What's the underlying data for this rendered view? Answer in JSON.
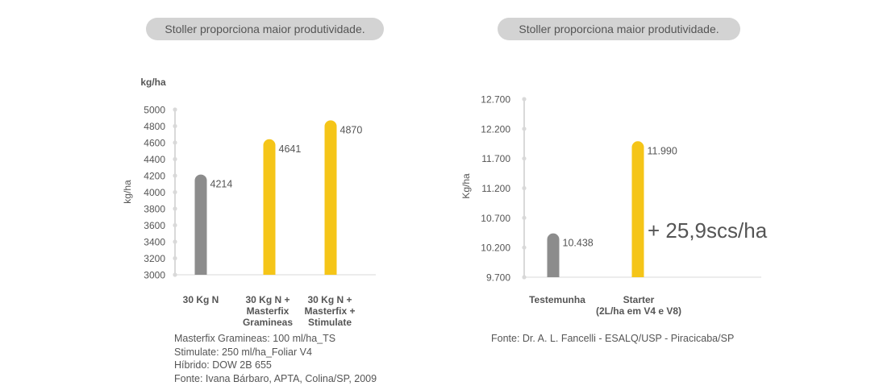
{
  "banners": {
    "left": "Stoller proporciona maior produtividade.",
    "right": "Stoller proporciona maior produtividade."
  },
  "colors": {
    "gray_bar": "#8c8c8c",
    "yellow_bar": "#f5c518",
    "axis": "#d9d9d9",
    "text": "#555555",
    "banner_bg": "#d3d3d3"
  },
  "chart_data": [
    {
      "type": "bar",
      "unit_label": "kg/ha",
      "ylabel": "kg/ha",
      "ylim": [
        3000,
        5000
      ],
      "ytick_labels": [
        "5000",
        "4800",
        "4600",
        "4400",
        "4200",
        "4000",
        "3800",
        "3600",
        "3400",
        "3200",
        "3000"
      ],
      "categories": [
        [
          "30 Kg N"
        ],
        [
          "30 Kg N +",
          "Masterfix",
          "Gramineas"
        ],
        [
          "30 Kg N +",
          "Masterfix +",
          "Stimulate"
        ]
      ],
      "values": [
        4214,
        4641,
        4870
      ],
      "value_labels": [
        "4214",
        "4641",
        "4870"
      ],
      "bar_colors": [
        "#8c8c8c",
        "#f5c518",
        "#f5c518"
      ],
      "grid": false,
      "notes": [
        "Masterfix Gramineas: 100 ml/ha_TS",
        "Stimulate: 250 ml/ha_Foliar V4",
        "Híbrido: DOW 2B 655",
        "Fonte: Ivana Bárbaro, APTA, Colina/SP, 2009"
      ]
    },
    {
      "type": "bar",
      "ylabel": "Kg/ha",
      "ylim": [
        9700,
        12700
      ],
      "ytick_labels": [
        "12.700",
        "12.200",
        "11.700",
        "11.200",
        "10.700",
        "10.200",
        "9.700"
      ],
      "categories": [
        [
          "Testemunha"
        ],
        [
          "Starter",
          "(2L/ha em V4 e V8)"
        ]
      ],
      "values": [
        10438,
        11990
      ],
      "value_labels": [
        "10.438",
        "11.990"
      ],
      "bar_colors": [
        "#8c8c8c",
        "#f5c518"
      ],
      "annotation": "+ 25,9scs/ha",
      "grid": false,
      "notes": [
        "Fonte: Dr. A. L. Fancelli - ESALQ/USP - Piracicaba/SP"
      ]
    }
  ]
}
